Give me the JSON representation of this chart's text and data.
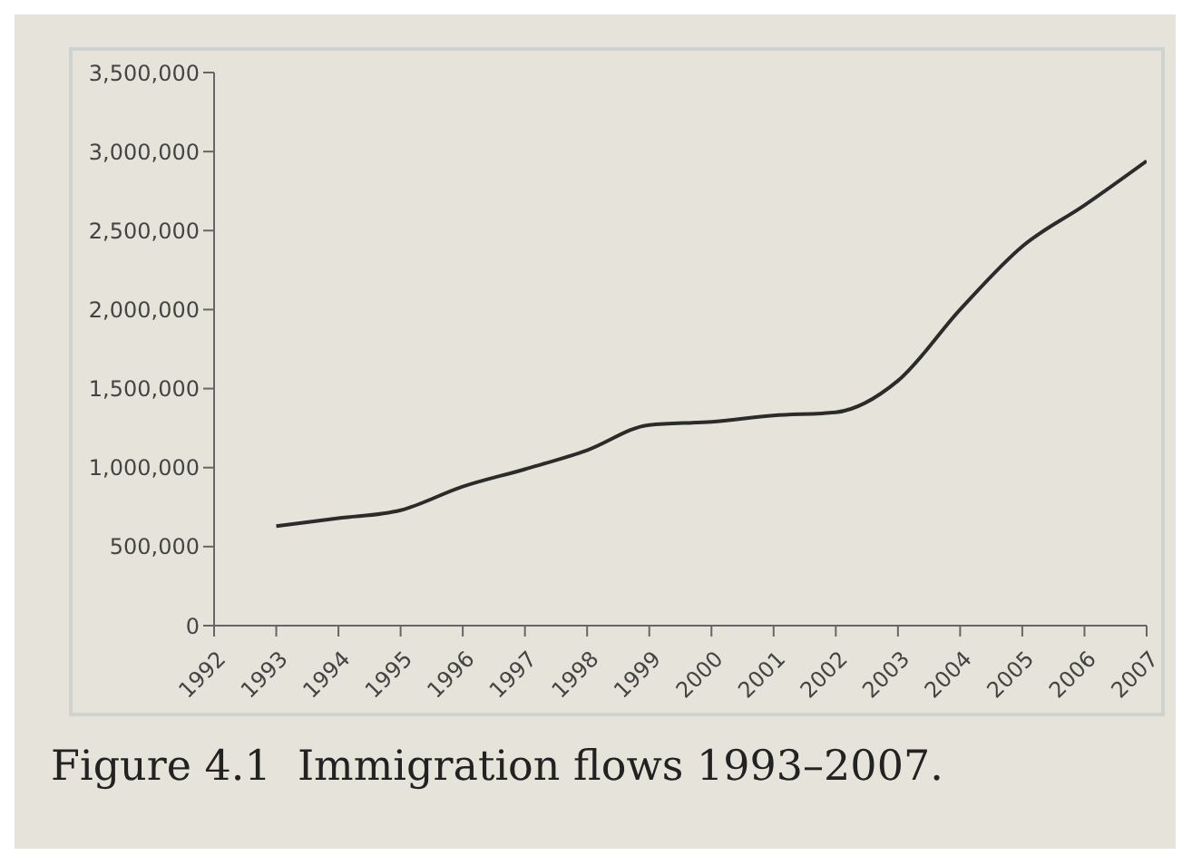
{
  "chart_data": {
    "type": "line",
    "title": "Figure 4.1  Immigration flows 1993–2007.",
    "x": [
      1993,
      1994,
      1995,
      1996,
      1997,
      1998,
      1999,
      2000,
      2001,
      2002,
      2003,
      2004,
      2005,
      2006,
      2007
    ],
    "series": [
      {
        "color": "#2b2b2b",
        "values": [
          630000,
          680000,
          730000,
          880000,
          990000,
          1110000,
          1270000,
          1290000,
          1330000,
          1350000,
          1550000,
          2000000,
          2400000,
          2660000,
          2940000
        ]
      }
    ],
    "xlim": [
      1992,
      2007
    ],
    "xticks": [
      1992,
      1993,
      1994,
      1995,
      1996,
      1997,
      1998,
      1999,
      2000,
      2001,
      2002,
      2003,
      2004,
      2005,
      2006,
      2007
    ],
    "ylim": [
      0,
      3500000
    ],
    "yticks": [
      0,
      {
        "value": 500000,
        "label": "500,000"
      },
      {
        "value": 1000000,
        "label": "1,000,000"
      },
      {
        "value": 1500000,
        "label": "1,500,000"
      },
      {
        "value": 2000000,
        "label": "2,000,000"
      },
      {
        "value": 2500000,
        "label": "2,500,000"
      },
      {
        "value": 3000000,
        "label": "3,000,000"
      },
      {
        "value": 3500000,
        "label": "3,500,000"
      }
    ],
    "grid": false,
    "legend": false,
    "marker": "none",
    "line_style": "solid"
  }
}
